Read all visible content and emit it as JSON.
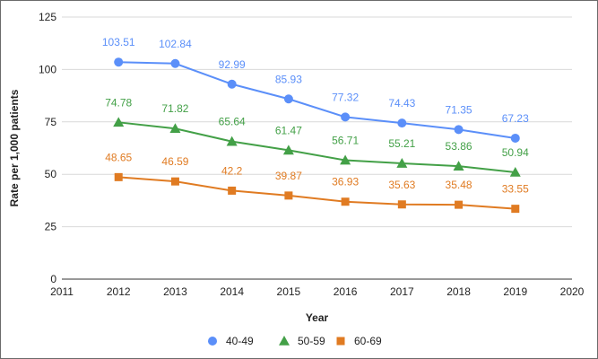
{
  "chart_data": {
    "type": "line",
    "title": "",
    "xlabel": "Year",
    "ylabel": "Rate per 1,000 patients",
    "xlim": [
      2011,
      2020
    ],
    "ylim": [
      0,
      125
    ],
    "xticks": [
      2011,
      2012,
      2013,
      2014,
      2015,
      2016,
      2017,
      2018,
      2019,
      2020
    ],
    "yticks": [
      0,
      25,
      50,
      75,
      100,
      125
    ],
    "grid": true,
    "legend_position": "bottom",
    "x": [
      2012,
      2013,
      2014,
      2015,
      2016,
      2017,
      2018,
      2019
    ],
    "series": [
      {
        "name": "40-49",
        "color": "#5b8ff9",
        "marker": "circle",
        "values": [
          103.51,
          102.84,
          92.99,
          85.93,
          77.32,
          74.43,
          71.35,
          67.23
        ],
        "labels": [
          "103.51",
          "102.84",
          "92.99",
          "85.93",
          "77.32",
          "74.43",
          "71.35",
          "67.23"
        ]
      },
      {
        "name": "50-59",
        "color": "#43a047",
        "marker": "triangle",
        "values": [
          74.78,
          71.82,
          65.64,
          61.47,
          56.71,
          55.21,
          53.86,
          50.94
        ],
        "labels": [
          "74.78",
          "71.82",
          "65.64",
          "61.47",
          "56.71",
          "55.21",
          "53.86",
          "50.94"
        ]
      },
      {
        "name": "60-69",
        "color": "#e07b22",
        "marker": "square",
        "values": [
          48.65,
          46.59,
          42.2,
          39.87,
          36.93,
          35.63,
          35.48,
          33.55
        ],
        "labels": [
          "48.65",
          "46.59",
          "42.2",
          "39.87",
          "36.93",
          "35.63",
          "35.48",
          "33.55"
        ]
      }
    ]
  }
}
